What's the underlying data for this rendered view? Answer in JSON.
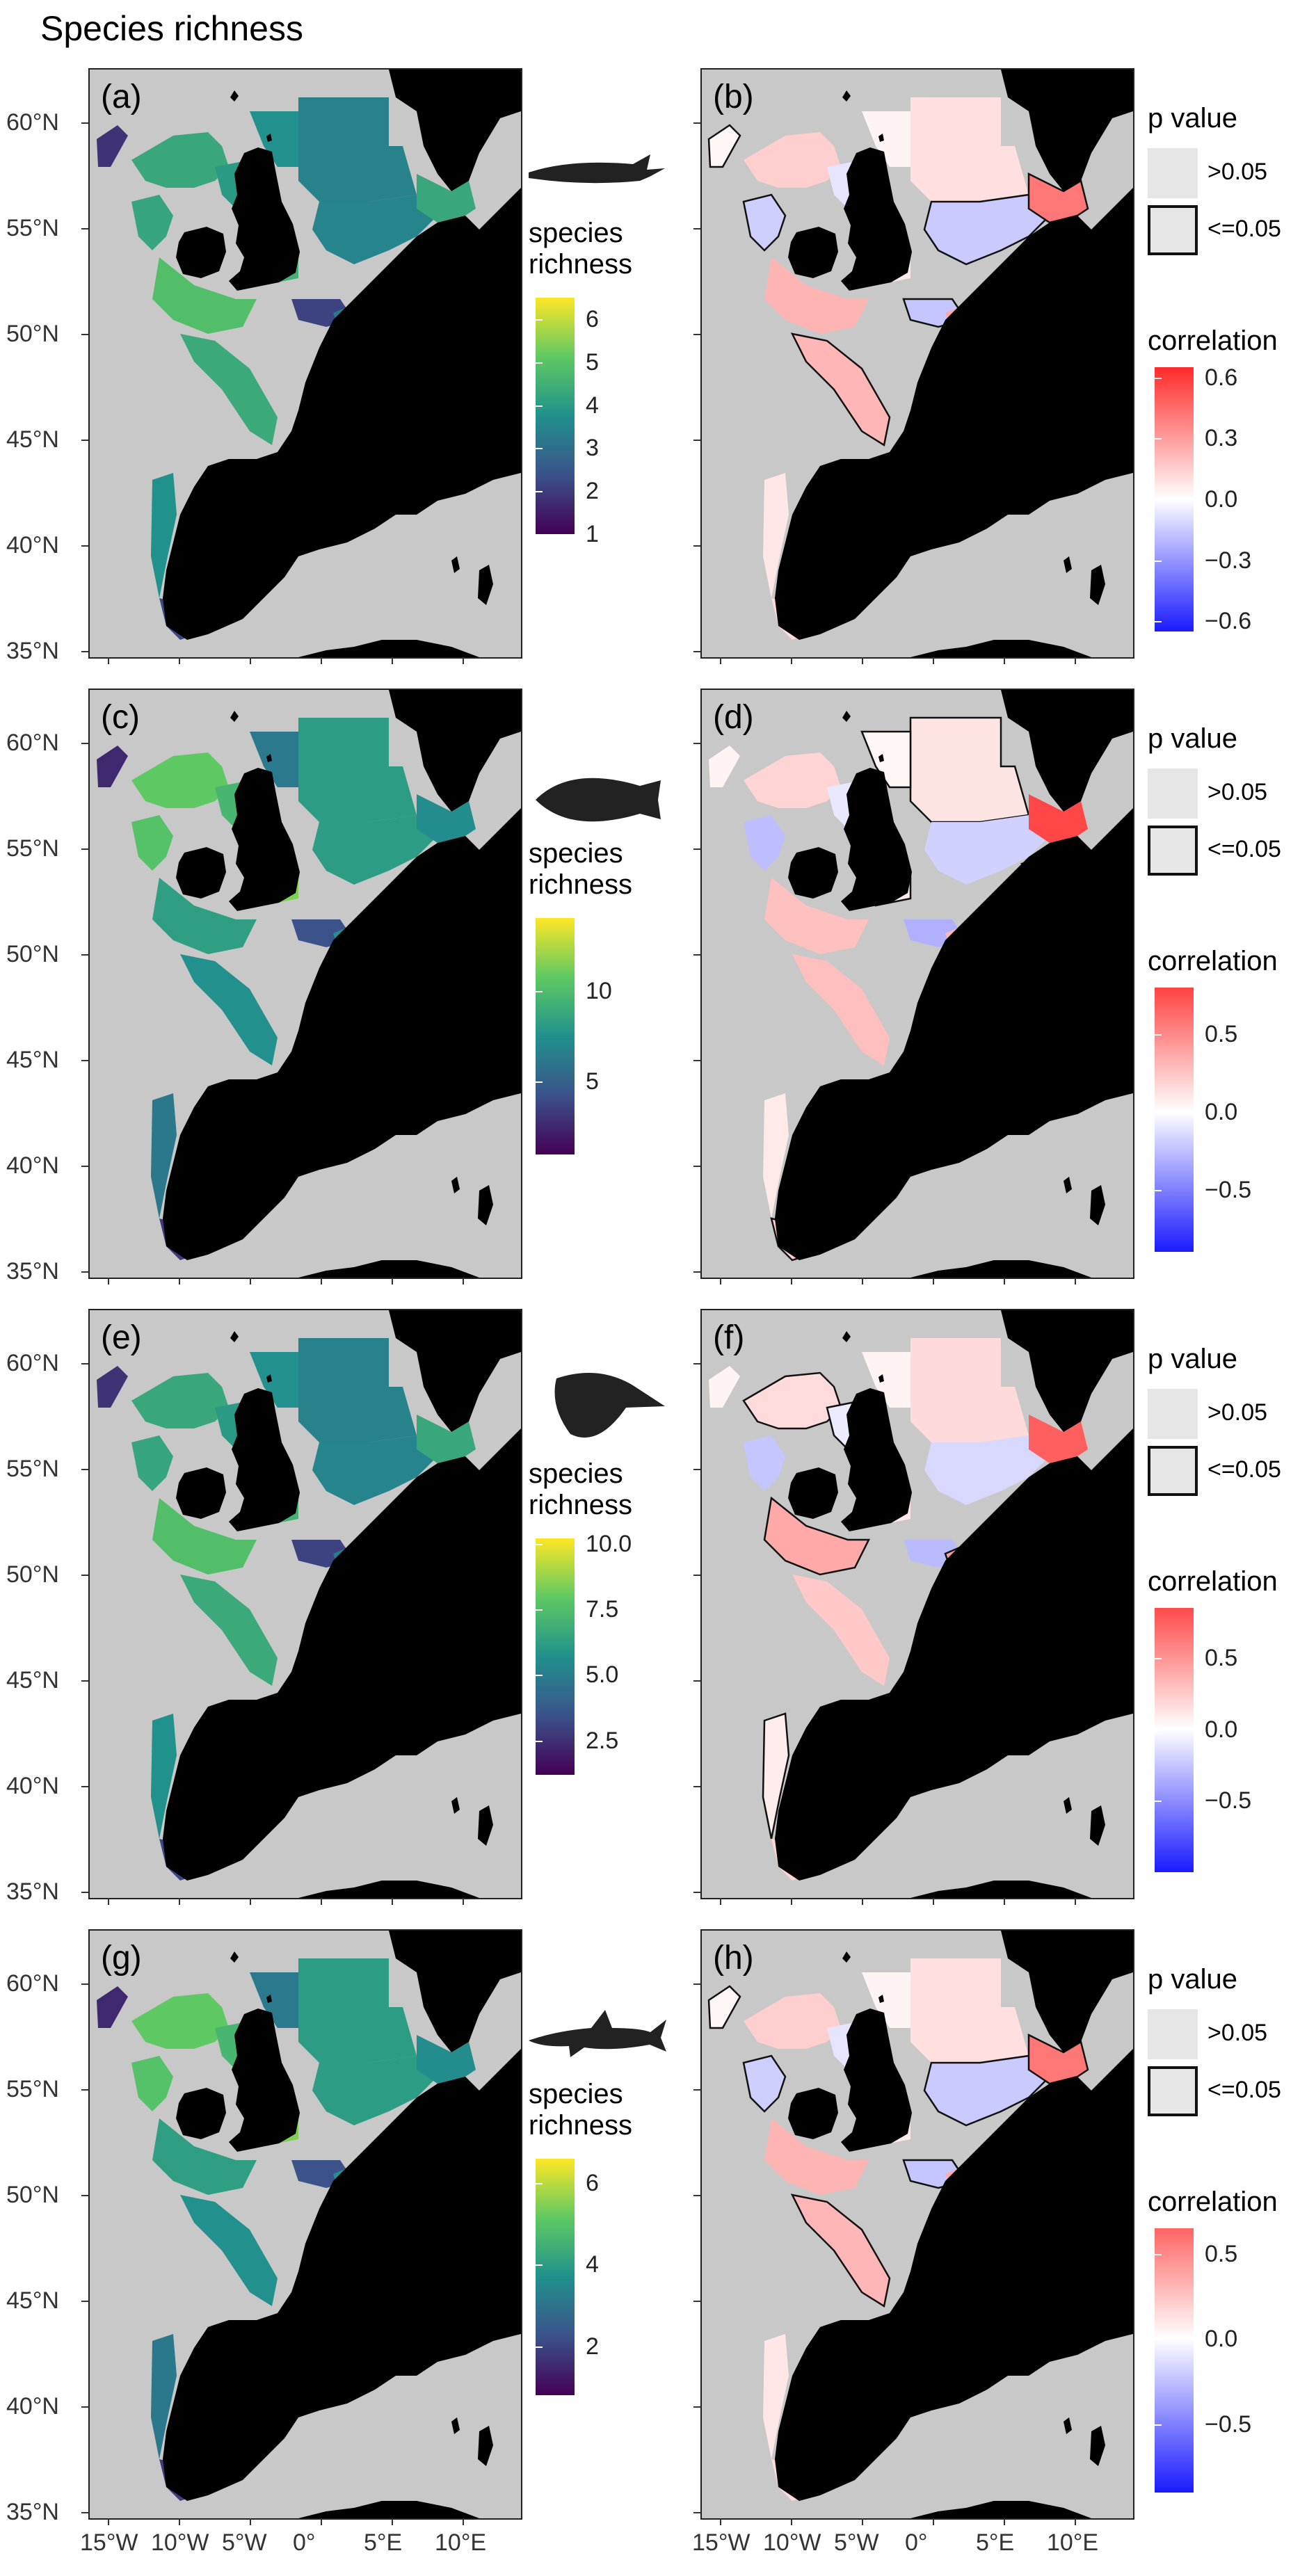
{
  "title": "Species richness",
  "x_ticks": [
    "15°W",
    "10°W",
    "5°W",
    "0°",
    "5°E",
    "10°E"
  ],
  "y_ticks": [
    "60°N",
    "55°N",
    "50°N",
    "45°N",
    "40°N",
    "35°N"
  ],
  "colors": {
    "land": "#000000",
    "sea_no_data": "#c8c8c8",
    "viridis": [
      "#440154",
      "#3b528b",
      "#21918c",
      "#5ec962",
      "#fde725"
    ],
    "diverging_neg": "#1a1aff",
    "diverging_zero": "#ffffff",
    "diverging_pos": "#ff2a2a"
  },
  "icons": [
    "fish-elongated-icon",
    "flatfish-icon",
    "ray-icon",
    "shark-icon"
  ],
  "chart_data": [
    {
      "type": "heatmap",
      "panel": "(a)",
      "legend_title": [
        "species",
        "richness"
      ],
      "colorbar_ticks": [
        "6",
        "5",
        "4",
        "3",
        "2",
        "1"
      ],
      "colorbar_range": [
        1,
        6.5
      ]
    },
    {
      "type": "heatmap",
      "panel": "(b)",
      "pvalue_title": "p value",
      "pvalue_labels": [
        ">0.05",
        "<=0.05"
      ],
      "legend_title": "correlation",
      "colorbar_ticks": [
        "0.6",
        "0.3",
        "0.0",
        "−0.3",
        "−0.6"
      ],
      "colorbar_range": [
        -0.65,
        0.65
      ]
    },
    {
      "type": "heatmap",
      "panel": "(c)",
      "legend_title": [
        "species",
        "richness"
      ],
      "colorbar_ticks": [
        "10",
        "5"
      ],
      "colorbar_range": [
        1,
        14
      ]
    },
    {
      "type": "heatmap",
      "panel": "(d)",
      "pvalue_title": "p value",
      "pvalue_labels": [
        ">0.05",
        "<=0.05"
      ],
      "legend_title": "correlation",
      "colorbar_ticks": [
        "0.5",
        "0.0",
        "−0.5"
      ],
      "colorbar_range": [
        -0.9,
        0.8
      ]
    },
    {
      "type": "heatmap",
      "panel": "(e)",
      "legend_title": [
        "species",
        "richness"
      ],
      "colorbar_ticks": [
        "10.0",
        "7.5",
        "5.0",
        "2.5"
      ],
      "colorbar_range": [
        1.2,
        10.2
      ]
    },
    {
      "type": "heatmap",
      "panel": "(f)",
      "pvalue_title": "p value",
      "pvalue_labels": [
        ">0.05",
        "<=0.05"
      ],
      "legend_title": "correlation",
      "colorbar_ticks": [
        "0.5",
        "0.0",
        "−0.5"
      ],
      "colorbar_range": [
        -1.0,
        0.85
      ]
    },
    {
      "type": "heatmap",
      "panel": "(g)",
      "legend_title": [
        "species",
        "richness"
      ],
      "colorbar_ticks": [
        "6",
        "4",
        "2"
      ],
      "colorbar_range": [
        0.8,
        6.6
      ]
    },
    {
      "type": "heatmap",
      "panel": "(h)",
      "pvalue_title": "p value",
      "pvalue_labels": [
        ">0.05",
        "<=0.05"
      ],
      "legend_title": "correlation",
      "colorbar_ticks": [
        "0.5",
        "0.0",
        "−0.5"
      ],
      "colorbar_range": [
        -0.9,
        0.65
      ]
    }
  ]
}
